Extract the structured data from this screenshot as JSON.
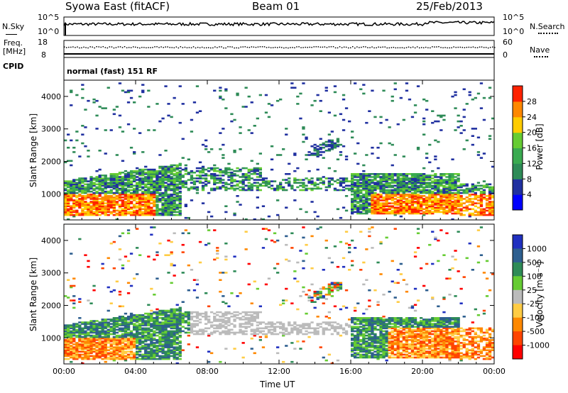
{
  "header": {
    "station": "Syowa East (fitACF)",
    "beam": "Beam 01",
    "date": "25/Feb/2013"
  },
  "noise_panel": {
    "left_label": "N.Sky",
    "right_label": "N.Search",
    "left_ticks": [
      "10^5",
      "10^0"
    ],
    "right_ticks": [
      "10^5",
      "10^0"
    ]
  },
  "freq_panel": {
    "left_label": "Freq.",
    "left_unit": "[MHz]",
    "right_label": "Nave",
    "left_ticks": [
      "18",
      "8"
    ],
    "right_ticks": [
      "60",
      "0"
    ]
  },
  "cpid": {
    "label": "CPID",
    "value": "normal (fast) 151 RF"
  },
  "colors": {
    "blue": "#2030a0",
    "navy": "#0000ff",
    "green_dark": "#2e8b57",
    "green_mid": "#3aaa50",
    "green_light": "#66cc33",
    "yellow": "#ffcc00",
    "orange": "#ff8800",
    "red": "#ff2200",
    "gray": "#bbbbbb"
  },
  "chart_data": [
    {
      "type": "heatmap",
      "name": "power",
      "ylabel": "Slant Range [km]",
      "y_ticks": [
        "1000",
        "2000",
        "3000",
        "4000"
      ],
      "ylim": [
        200,
        4500
      ],
      "x_ticks": [
        "00:00",
        "04:00",
        "08:00",
        "12:00",
        "16:00",
        "20:00",
        "00:00"
      ],
      "colorbar_label": "Power [dB]",
      "colorbar_ticks": [
        "4",
        "8",
        "12",
        "16",
        "20",
        "24",
        "28"
      ],
      "colorbar_colors": [
        "#0000ff",
        "#2030a0",
        "#2e8b57",
        "#3aaa50",
        "#66cc33",
        "#ffcc00",
        "#ff8800",
        "#ff2200"
      ]
    },
    {
      "type": "heatmap",
      "name": "velocity",
      "ylabel": "Slant Range [km]",
      "y_ticks": [
        "1000",
        "2000",
        "3000",
        "4000"
      ],
      "ylim": [
        200,
        4500
      ],
      "x_ticks": [
        "00:00",
        "04:00",
        "08:00",
        "12:00",
        "16:00",
        "20:00",
        "00:00"
      ],
      "xlabel": "Time UT",
      "colorbar_label": "Velocity [m s⁻¹]",
      "colorbar_ticks": [
        "1000",
        "500",
        "100",
        "25",
        "-25",
        "-100",
        "-500",
        "-1000"
      ],
      "colorbar_colors": [
        "#2030c0",
        "#2e5f8f",
        "#2e8b57",
        "#66cc33",
        "#bbbbbb",
        "#ffcc44",
        "#ff8800",
        "#ff4400",
        "#ff0000"
      ]
    }
  ]
}
